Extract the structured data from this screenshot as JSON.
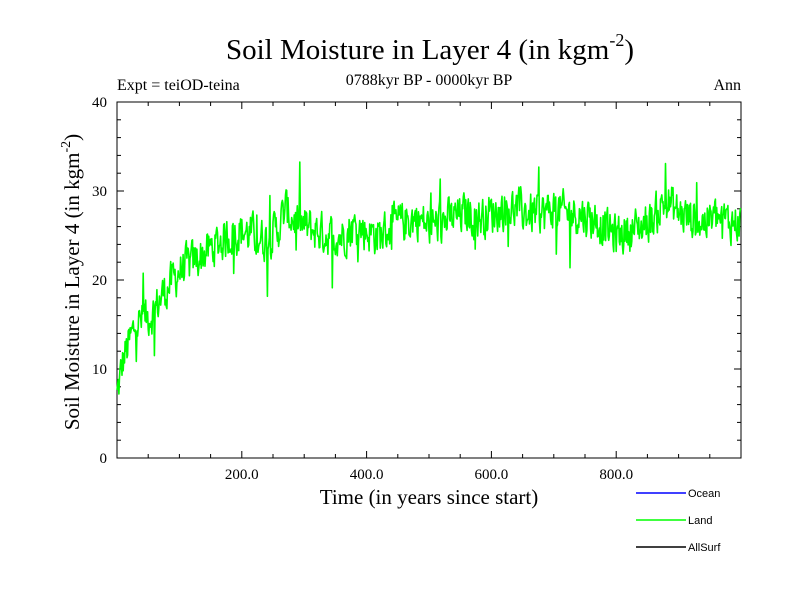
{
  "chart_data": {
    "type": "line",
    "title": "Soil Moisture in Layer 4 (in kgm",
    "title_sup": "-2",
    "title_close": ")",
    "subtitle": "0788kyr BP - 0000kyr BP",
    "expt_label": "Expt = teiOD-teina",
    "season_label": "Ann",
    "xlabel": "Time (in years since start)",
    "ylabel": "Soil Moisture in Layer 4 (in kgm",
    "ylabel_sup": "-2",
    "ylabel_close": ")",
    "xlim": [
      0,
      1000
    ],
    "ylim": [
      0,
      40
    ],
    "x_ticks": [
      200,
      400,
      600,
      800
    ],
    "x_tick_labels": [
      "200.0",
      "400.0",
      "600.0",
      "800.0"
    ],
    "y_ticks": [
      0,
      10,
      20,
      30,
      40
    ],
    "y_tick_labels": [
      "0",
      "10",
      "20",
      "30",
      "40"
    ],
    "legend_position": "bottom-right",
    "series": [
      {
        "name": "Ocean",
        "color": "#0000ff",
        "values": []
      },
      {
        "name": "Land",
        "color": "#00ff00",
        "x": [
          0,
          10,
          20,
          30,
          40,
          50,
          60,
          70,
          80,
          90,
          100,
          120,
          140,
          160,
          180,
          200,
          220,
          240,
          260,
          270,
          280,
          300,
          320,
          340,
          360,
          380,
          400,
          420,
          440,
          460,
          480,
          500,
          520,
          540,
          560,
          580,
          600,
          620,
          640,
          660,
          680,
          700,
          720,
          740,
          760,
          780,
          800,
          820,
          840,
          860,
          880,
          900,
          920,
          940,
          960,
          980,
          1000
        ],
        "values": [
          7,
          11,
          13,
          15,
          15.5,
          16,
          16.5,
          18,
          19,
          20,
          21,
          22,
          23,
          24,
          25,
          25.5,
          25,
          24.5,
          26,
          28,
          27,
          26,
          25.5,
          25,
          25,
          26,
          25.5,
          25,
          26,
          26.5,
          27,
          26,
          26.5,
          27,
          27.5,
          27,
          27.5,
          28,
          28,
          27.5,
          27.5,
          28,
          27.5,
          27.5,
          27,
          26,
          25,
          25.5,
          26,
          27,
          29,
          27.5,
          27,
          26.5,
          27,
          26.5,
          26.5
        ],
        "noise_amplitude": 3.2,
        "min_value": 4.8,
        "max_value": 35.2
      },
      {
        "name": "AllSurf",
        "color": "#000000",
        "values": []
      }
    ]
  }
}
